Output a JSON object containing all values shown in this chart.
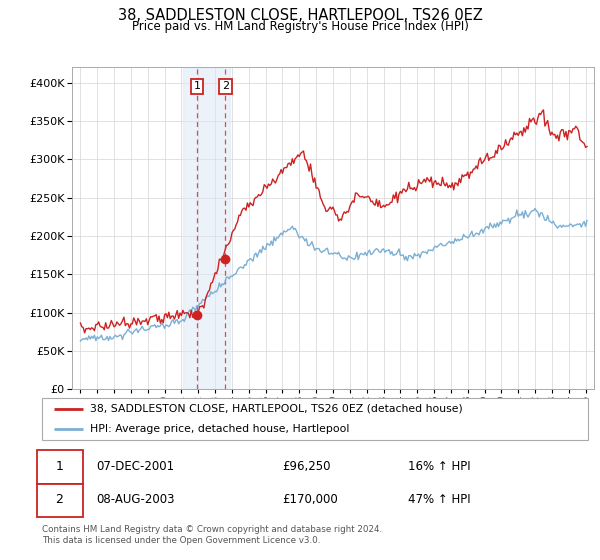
{
  "title": "38, SADDLESTON CLOSE, HARTLEPOOL, TS26 0EZ",
  "subtitle": "Price paid vs. HM Land Registry's House Price Index (HPI)",
  "legend_line1": "38, SADDLESTON CLOSE, HARTLEPOOL, TS26 0EZ (detached house)",
  "legend_line2": "HPI: Average price, detached house, Hartlepool",
  "footer": "Contains HM Land Registry data © Crown copyright and database right 2024.\nThis data is licensed under the Open Government Licence v3.0.",
  "transaction1_date": "07-DEC-2001",
  "transaction1_price": 96250,
  "transaction1_hpi": "16% ↑ HPI",
  "transaction1_year": 2001.92,
  "transaction2_date": "08-AUG-2003",
  "transaction2_price": 170000,
  "transaction2_hpi": "47% ↑ HPI",
  "transaction2_year": 2003.6,
  "hpi_color": "#7bafd4",
  "price_color": "#cc2222",
  "marker_color": "#cc2222",
  "vline_color": "#ee4444",
  "shade_color": "#dce8f5",
  "ylim": [
    0,
    420000
  ],
  "yticks": [
    0,
    50000,
    100000,
    150000,
    200000,
    250000,
    300000,
    350000,
    400000
  ],
  "xlim_start": 1994.5,
  "xlim_end": 2025.5
}
